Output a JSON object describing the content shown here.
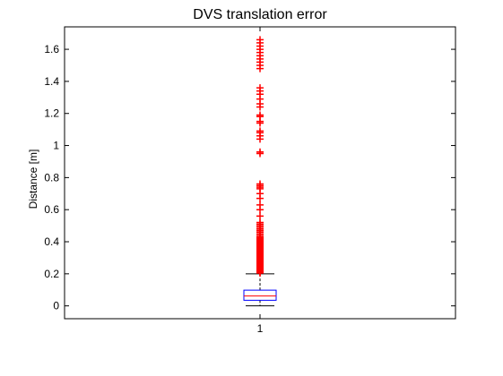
{
  "chart_data": {
    "type": "box",
    "title": "DVS translation error",
    "xlabel": "",
    "ylabel": "Distance [m]",
    "categories": [
      "1"
    ],
    "ylim": [
      -0.08,
      1.74
    ],
    "yticks": [
      "0",
      "0.2",
      "0.4",
      "0.6",
      "0.8",
      "1",
      "1.2",
      "1.4",
      "1.6"
    ],
    "grid": false,
    "box": {
      "lower_whisker": 0.0,
      "q1": 0.035,
      "median": 0.062,
      "q3": 0.098,
      "upper_whisker": 0.2
    },
    "outliers": [
      0.205,
      0.21,
      0.215,
      0.22,
      0.225,
      0.23,
      0.235,
      0.24,
      0.245,
      0.25,
      0.255,
      0.26,
      0.265,
      0.27,
      0.275,
      0.28,
      0.285,
      0.29,
      0.295,
      0.3,
      0.305,
      0.31,
      0.315,
      0.32,
      0.325,
      0.33,
      0.335,
      0.34,
      0.345,
      0.35,
      0.355,
      0.36,
      0.365,
      0.37,
      0.375,
      0.38,
      0.385,
      0.39,
      0.395,
      0.4,
      0.405,
      0.41,
      0.415,
      0.42,
      0.425,
      0.43,
      0.44,
      0.45,
      0.46,
      0.47,
      0.48,
      0.49,
      0.5,
      0.51,
      0.52,
      0.56,
      0.6,
      0.63,
      0.67,
      0.7,
      0.73,
      0.74,
      0.75,
      0.76,
      0.95,
      0.96,
      1.04,
      1.06,
      1.08,
      1.09,
      1.14,
      1.15,
      1.18,
      1.19,
      1.24,
      1.26,
      1.29,
      1.32,
      1.34,
      1.36,
      1.48,
      1.5,
      1.52,
      1.54,
      1.56,
      1.58,
      1.6,
      1.62,
      1.64,
      1.66
    ],
    "colors": {
      "box": "#0000ff",
      "median": "#ff0000",
      "whisker": "#000000",
      "outlier": "#ff0000",
      "axes": "#000000"
    }
  }
}
